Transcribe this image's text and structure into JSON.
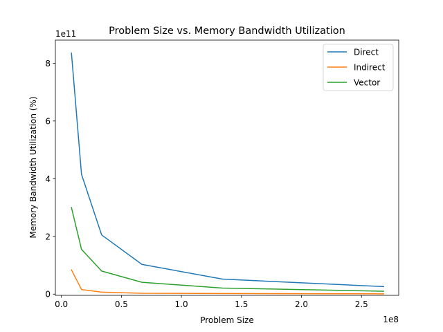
{
  "chart_data": {
    "type": "line",
    "title": "Problem Size vs. Memory Bandwidth Utilization",
    "xlabel": "Problem Size",
    "ylabel": "Memory Bandwidth Utilization (%)",
    "x_scale_label": "1e8",
    "y_scale_label": "1e11",
    "x_multiplier": 100000000,
    "y_multiplier": 100000000000,
    "xlim": [
      -5000000,
      281000000
    ],
    "ylim": [
      -4200000000,
      880000000000
    ],
    "x_ticks": [
      {
        "value": 0,
        "label": "0.0"
      },
      {
        "value": 50000000,
        "label": "0.5"
      },
      {
        "value": 100000000,
        "label": "1.0"
      },
      {
        "value": 150000000,
        "label": "1.5"
      },
      {
        "value": 200000000,
        "label": "2.0"
      },
      {
        "value": 250000000,
        "label": "2.5"
      }
    ],
    "y_ticks": [
      {
        "value": 0,
        "label": "0"
      },
      {
        "value": 200000000000,
        "label": "2"
      },
      {
        "value": 400000000000,
        "label": "4"
      },
      {
        "value": 600000000000,
        "label": "6"
      },
      {
        "value": 800000000000,
        "label": "8"
      }
    ],
    "grid": false,
    "legend_position": "top-right",
    "x": [
      8388608,
      16777216,
      33554432,
      67108864,
      134217728,
      268435456
    ],
    "series": [
      {
        "name": "Direct",
        "color": "#1f77b4",
        "values": [
          835000000000,
          415000000000,
          205000000000,
          103000000000,
          52000000000,
          26000000000
        ]
      },
      {
        "name": "Indirect",
        "color": "#ff7f0e",
        "values": [
          84000000000,
          16000000000,
          7000000000,
          3000000000,
          2000000000,
          1000000000
        ]
      },
      {
        "name": "Vector",
        "color": "#2ca02c",
        "values": [
          300000000000,
          155000000000,
          80000000000,
          41000000000,
          21000000000,
          10000000000
        ]
      }
    ]
  }
}
